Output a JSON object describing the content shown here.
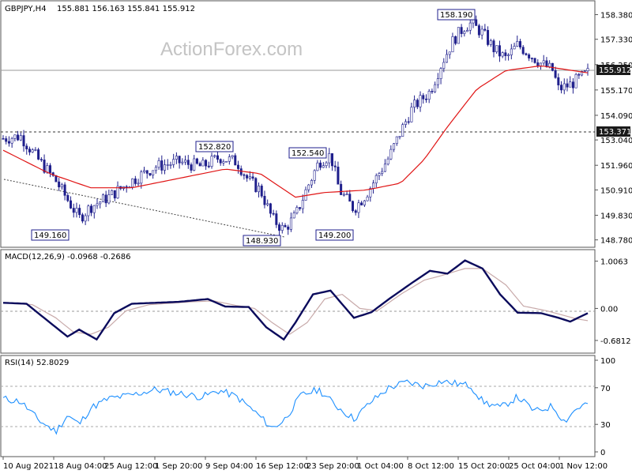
{
  "symbol_label": "GBPJPY,H4",
  "ohlc_label": "155.881 156.163 155.841 155.912",
  "watermark": "ActionForex.com",
  "colors": {
    "price": "#1f1f8c",
    "ma": "#e01414",
    "macd": "#0b0b5c",
    "signal": "#c8aaaa",
    "rsi": "#1e90ff"
  },
  "chart_data": [
    {
      "type": "candlestick",
      "title": "GBPJPY,H4",
      "y_ticks": [
        "158.380",
        "157.330",
        "156.250",
        "155.170",
        "154.090",
        "153.040",
        "151.960",
        "150.910",
        "149.830",
        "148.780"
      ],
      "x_ticks": [
        "10 Aug 2021",
        "18 Aug 04:00",
        "25 Aug 12:00",
        "1 Sep 20:00",
        "9 Sep 04:00",
        "16 Sep 12:00",
        "23 Sep 20:00",
        "1 Oct 04:00",
        "8 Oct 12:00",
        "15 Oct 20:00",
        "25 Oct 04:00",
        "1 Nov 12:00"
      ],
      "ylim": [
        148.6,
        158.6
      ],
      "current_price": "155.912",
      "level_line": "153.371",
      "annotations": [
        "149.160",
        "152.820",
        "148.930",
        "152.540",
        "149.200",
        "158.190"
      ],
      "price_path": [
        [
          0,
          153.1
        ],
        [
          0.03,
          153.2
        ],
        [
          0.06,
          152.2
        ],
        [
          0.09,
          151.3
        ],
        [
          0.11,
          150.5
        ],
        [
          0.13,
          149.7
        ],
        [
          0.15,
          150.2
        ],
        [
          0.18,
          150.6
        ],
        [
          0.22,
          151.3
        ],
        [
          0.26,
          151.9
        ],
        [
          0.3,
          152.1
        ],
        [
          0.34,
          151.9
        ],
        [
          0.37,
          152.3
        ],
        [
          0.4,
          152.1
        ],
        [
          0.42,
          151.3
        ],
        [
          0.44,
          150.9
        ],
        [
          0.46,
          149.7
        ],
        [
          0.48,
          149.2
        ],
        [
          0.5,
          149.8
        ],
        [
          0.52,
          151.0
        ],
        [
          0.54,
          152.1
        ],
        [
          0.56,
          152.4
        ],
        [
          0.575,
          150.9
        ],
        [
          0.6,
          150.1
        ],
        [
          0.62,
          150.7
        ],
        [
          0.64,
          151.5
        ],
        [
          0.66,
          152.3
        ],
        [
          0.68,
          153.4
        ],
        [
          0.7,
          154.4
        ],
        [
          0.73,
          155.1
        ],
        [
          0.75,
          156.3
        ],
        [
          0.77,
          157.3
        ],
        [
          0.79,
          157.9
        ],
        [
          0.8,
          158.0
        ],
        [
          0.82,
          157.6
        ],
        [
          0.84,
          156.9
        ],
        [
          0.86,
          156.5
        ],
        [
          0.88,
          157.1
        ],
        [
          0.9,
          156.7
        ],
        [
          0.92,
          156.3
        ],
        [
          0.94,
          156.0
        ],
        [
          0.95,
          155.2
        ],
        [
          0.97,
          155.4
        ],
        [
          1.0,
          155.9
        ]
      ],
      "ma_path": [
        [
          0,
          152.6
        ],
        [
          0.08,
          151.6
        ],
        [
          0.15,
          151.0
        ],
        [
          0.22,
          151.0
        ],
        [
          0.3,
          151.4
        ],
        [
          0.38,
          151.8
        ],
        [
          0.44,
          151.6
        ],
        [
          0.5,
          150.6
        ],
        [
          0.55,
          150.8
        ],
        [
          0.62,
          150.9
        ],
        [
          0.68,
          151.2
        ],
        [
          0.72,
          152.2
        ],
        [
          0.76,
          153.6
        ],
        [
          0.81,
          155.2
        ],
        [
          0.86,
          156.0
        ],
        [
          0.92,
          156.2
        ],
        [
          1.0,
          155.9
        ]
      ]
    },
    {
      "type": "line",
      "title": "MACD(12,26,9) -0.0968 -0.2686",
      "y_ticks": [
        "1.0063",
        "0.00",
        "-0.6812"
      ],
      "ylim": [
        -0.85,
        1.15
      ],
      "macd_path": [
        [
          0,
          0.12
        ],
        [
          0.04,
          0.1
        ],
        [
          0.08,
          -0.3
        ],
        [
          0.11,
          -0.6
        ],
        [
          0.13,
          -0.45
        ],
        [
          0.16,
          -0.66
        ],
        [
          0.19,
          -0.1
        ],
        [
          0.22,
          0.1
        ],
        [
          0.3,
          0.14
        ],
        [
          0.35,
          0.2
        ],
        [
          0.38,
          0.04
        ],
        [
          0.42,
          0.03
        ],
        [
          0.45,
          -0.4
        ],
        [
          0.48,
          -0.66
        ],
        [
          0.5,
          -0.3
        ],
        [
          0.53,
          0.3
        ],
        [
          0.56,
          0.38
        ],
        [
          0.6,
          -0.2
        ],
        [
          0.63,
          -0.08
        ],
        [
          0.66,
          0.2
        ],
        [
          0.7,
          0.55
        ],
        [
          0.73,
          0.8
        ],
        [
          0.76,
          0.74
        ],
        [
          0.79,
          1.02
        ],
        [
          0.82,
          0.85
        ],
        [
          0.85,
          0.3
        ],
        [
          0.88,
          -0.09
        ],
        [
          0.92,
          -0.1
        ],
        [
          0.95,
          -0.2
        ],
        [
          0.97,
          -0.28
        ],
        [
          1.0,
          -0.1
        ]
      ],
      "signal_path": [
        [
          0,
          0.12
        ],
        [
          0.05,
          0.08
        ],
        [
          0.09,
          -0.2
        ],
        [
          0.12,
          -0.5
        ],
        [
          0.15,
          -0.55
        ],
        [
          0.18,
          -0.4
        ],
        [
          0.21,
          -0.05
        ],
        [
          0.25,
          0.08
        ],
        [
          0.32,
          0.14
        ],
        [
          0.36,
          0.16
        ],
        [
          0.4,
          0.06
        ],
        [
          0.43,
          0.0
        ],
        [
          0.46,
          -0.3
        ],
        [
          0.49,
          -0.55
        ],
        [
          0.52,
          -0.3
        ],
        [
          0.55,
          0.2
        ],
        [
          0.58,
          0.3
        ],
        [
          0.61,
          0.0
        ],
        [
          0.64,
          -0.05
        ],
        [
          0.68,
          0.3
        ],
        [
          0.72,
          0.6
        ],
        [
          0.75,
          0.7
        ],
        [
          0.79,
          0.85
        ],
        [
          0.82,
          0.85
        ],
        [
          0.86,
          0.5
        ],
        [
          0.89,
          0.05
        ],
        [
          0.93,
          -0.05
        ],
        [
          0.96,
          -0.15
        ],
        [
          0.98,
          -0.22
        ],
        [
          1.0,
          -0.26
        ]
      ]
    },
    {
      "type": "line",
      "title": "RSI(14) 52.8029",
      "y_ticks": [
        "100",
        "70",
        "30",
        "0"
      ],
      "ylim": [
        0,
        100
      ],
      "rsi_path": [
        [
          0,
          58
        ],
        [
          0.03,
          55
        ],
        [
          0.06,
          35
        ],
        [
          0.09,
          22
        ],
        [
          0.11,
          40
        ],
        [
          0.13,
          30
        ],
        [
          0.15,
          48
        ],
        [
          0.18,
          58
        ],
        [
          0.22,
          62
        ],
        [
          0.26,
          68
        ],
        [
          0.3,
          64
        ],
        [
          0.34,
          60
        ],
        [
          0.37,
          67
        ],
        [
          0.4,
          60
        ],
        [
          0.43,
          44
        ],
        [
          0.46,
          26
        ],
        [
          0.48,
          34
        ],
        [
          0.51,
          62
        ],
        [
          0.54,
          68
        ],
        [
          0.57,
          50
        ],
        [
          0.6,
          36
        ],
        [
          0.63,
          55
        ],
        [
          0.66,
          70
        ],
        [
          0.69,
          76
        ],
        [
          0.72,
          72
        ],
        [
          0.75,
          77
        ],
        [
          0.78,
          74
        ],
        [
          0.8,
          72
        ],
        [
          0.82,
          55
        ],
        [
          0.85,
          48
        ],
        [
          0.88,
          60
        ],
        [
          0.91,
          44
        ],
        [
          0.94,
          50
        ],
        [
          0.96,
          33
        ],
        [
          0.98,
          47
        ],
        [
          1.0,
          53
        ]
      ]
    }
  ]
}
